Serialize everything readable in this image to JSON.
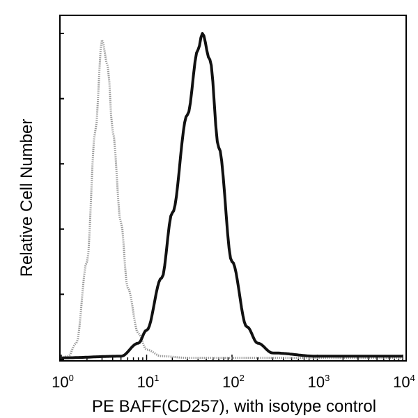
{
  "chart_data": {
    "type": "line",
    "title": "",
    "xlabel": "PE BAFF(CD257), with isotype control",
    "ylabel": "Relative Cell Number",
    "xscale": "log",
    "xlim": [
      1,
      10000
    ],
    "ylim": [
      0,
      100
    ],
    "grid": false,
    "x_tick_labels": [
      {
        "base": "10",
        "exp": "0",
        "value": 1
      },
      {
        "base": "10",
        "exp": "1",
        "value": 10
      },
      {
        "base": "10",
        "exp": "2",
        "value": 100
      },
      {
        "base": "10",
        "exp": "3",
        "value": 1000
      },
      {
        "base": "10",
        "exp": "4",
        "value": 10000
      }
    ],
    "y_ticks": [
      0,
      20,
      40,
      60,
      80,
      100
    ],
    "series": [
      {
        "color": "#9a9a9a",
        "style": "dotted",
        "x": [
          1,
          1.2,
          1.5,
          2,
          2.5,
          3,
          3.5,
          4,
          5,
          6,
          8,
          10,
          15,
          30,
          10000
        ],
        "y": [
          0.5,
          1,
          5,
          30,
          70,
          98,
          90,
          70,
          42,
          22,
          8,
          3,
          1,
          0.5,
          0.5
        ]
      },
      {
        "color": "#111111",
        "style": "solid",
        "x": [
          1,
          5,
          8,
          10,
          15,
          20,
          30,
          40,
          45,
          55,
          70,
          100,
          150,
          200,
          300,
          1000,
          10000
        ],
        "y": [
          0.5,
          1,
          5,
          9,
          25,
          45,
          75,
          95,
          100,
          92,
          65,
          30,
          10,
          5,
          2,
          1,
          1
        ]
      }
    ]
  }
}
